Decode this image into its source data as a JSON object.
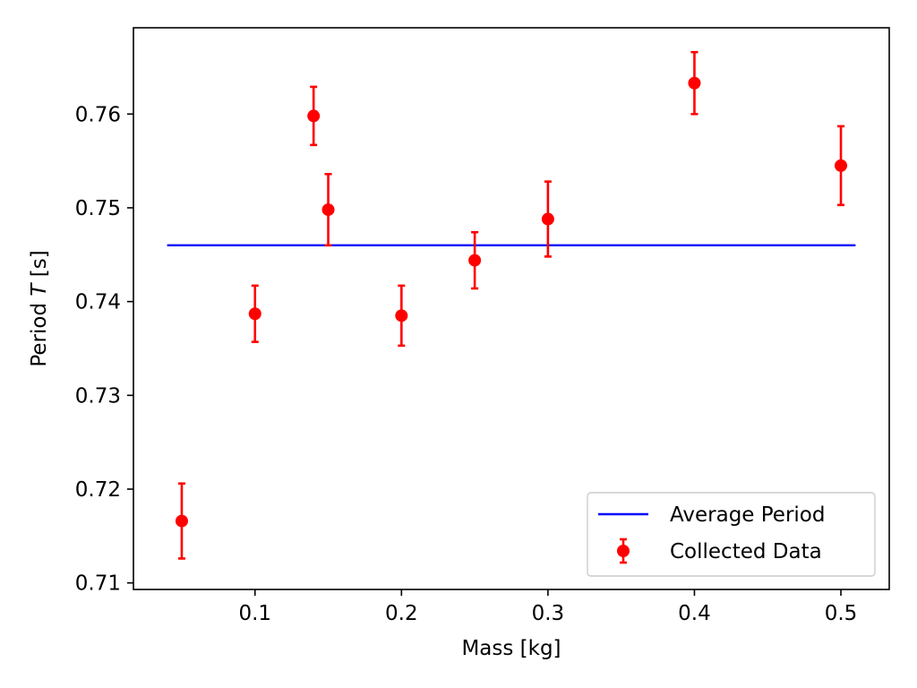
{
  "chart_data": {
    "type": "scatter",
    "title": "",
    "xlabel": "Mass [kg]",
    "ylabel_prefix": "Period ",
    "ylabel_var": "T",
    "ylabel_suffix": " [s]",
    "xlim": [
      0.017,
      0.533
    ],
    "ylim": [
      0.7093,
      0.7692
    ],
    "x_ticks": [
      0.1,
      0.2,
      0.3,
      0.4,
      0.5
    ],
    "x_tick_labels": [
      "0.1",
      "0.2",
      "0.3",
      "0.4",
      "0.5"
    ],
    "y_ticks": [
      0.71,
      0.72,
      0.73,
      0.74,
      0.75,
      0.76
    ],
    "y_tick_labels": [
      "0.71",
      "0.72",
      "0.73",
      "0.74",
      "0.75",
      "0.76"
    ],
    "grid": false,
    "legend_position": "bottom-right",
    "series": [
      {
        "name": "Average Period",
        "kind": "line",
        "color": "#0000ff",
        "x": [
          0.04,
          0.51
        ],
        "y": [
          0.746,
          0.746
        ]
      },
      {
        "name": "Collected Data",
        "kind": "errorbar",
        "color": "#ff0000",
        "x": [
          0.05,
          0.1,
          0.14,
          0.15,
          0.2,
          0.25,
          0.3,
          0.4,
          0.5
        ],
        "y": [
          0.7166,
          0.7387,
          0.7598,
          0.7498,
          0.7385,
          0.7444,
          0.7488,
          0.7633,
          0.7545
        ],
        "yerr": [
          0.004,
          0.003,
          0.0031,
          0.0038,
          0.0032,
          0.003,
          0.004,
          0.0033,
          0.0042
        ]
      }
    ]
  }
}
